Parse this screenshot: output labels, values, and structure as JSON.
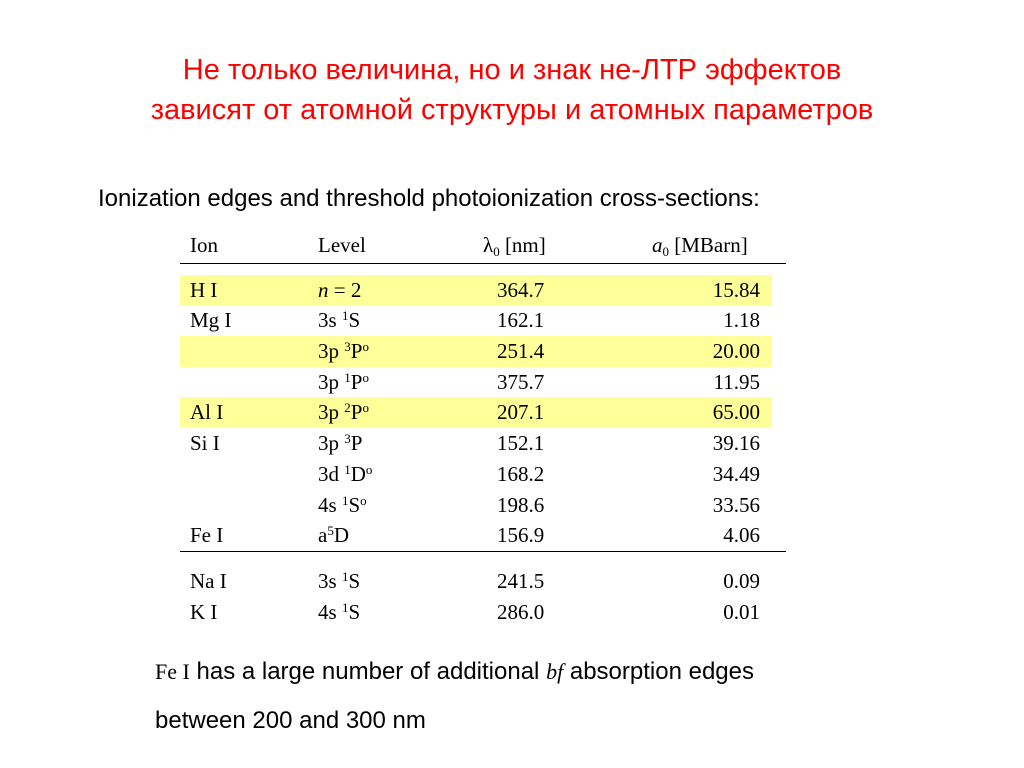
{
  "title": {
    "line1": "Не только величина, но и знак не-ЛТР эффектов",
    "line2": "зависят от атомной структуры и атомных параметров"
  },
  "subtitle": "Ionization edges and threshold photoionization cross-sections:",
  "table": {
    "headers": {
      "ion": "Ion",
      "level": "Level",
      "lambda_symbol": "λ",
      "lambda_sub": "0",
      "lambda_unit": " [nm]",
      "a_symbol": "a",
      "a_sub": "0",
      "a_unit": " [MBarn]"
    },
    "rows": [
      {
        "ion": "H I",
        "level_pre": "n",
        "level_main": " = 2",
        "level_sup": "",
        "level_post": "",
        "lambda": "364.7",
        "a0": "15.84"
      },
      {
        "ion": "Mg I",
        "level_pre": "",
        "level_main": "3s ",
        "level_sup": "1",
        "level_post": "S",
        "level_sup2": "",
        "lambda": "162.1",
        "a0": "1.18"
      },
      {
        "ion": "",
        "level_pre": "",
        "level_main": "3p ",
        "level_sup": "3",
        "level_post": "P",
        "level_sup2": "o",
        "lambda": "251.4",
        "a0": "20.00"
      },
      {
        "ion": "",
        "level_pre": "",
        "level_main": "3p ",
        "level_sup": "1",
        "level_post": "P",
        "level_sup2": "o",
        "lambda": "375.7",
        "a0": "11.95"
      },
      {
        "ion": "Al I",
        "level_pre": "",
        "level_main": "3p ",
        "level_sup": "2",
        "level_post": "P",
        "level_sup2": "o",
        "lambda": "207.1",
        "a0": "65.00"
      },
      {
        "ion": "Si I",
        "level_pre": "",
        "level_main": "3p ",
        "level_sup": "3",
        "level_post": "P",
        "level_sup2": "",
        "lambda": "152.1",
        "a0": "39.16"
      },
      {
        "ion": "",
        "level_pre": "",
        "level_main": "3d ",
        "level_sup": "1",
        "level_post": "D",
        "level_sup2": "o",
        "lambda": "168.2",
        "a0": "34.49"
      },
      {
        "ion": "",
        "level_pre": "",
        "level_main": "4s ",
        "level_sup": "1",
        "level_post": "S",
        "level_sup2": "o",
        "lambda": "198.6",
        "a0": "33.56"
      },
      {
        "ion": "Fe I",
        "level_pre": "",
        "level_main": "a",
        "level_sup": "5",
        "level_post": "D",
        "level_sup2": "",
        "lambda": "156.9",
        "a0": "4.06"
      },
      {
        "ion": "Na I",
        "level_pre": "",
        "level_main": "3s ",
        "level_sup": "1",
        "level_post": "S",
        "level_sup2": "",
        "lambda": "241.5",
        "a0": "0.09"
      },
      {
        "ion": "K I",
        "level_pre": "",
        "level_main": "4s ",
        "level_sup": "1",
        "level_post": "S",
        "level_sup2": "",
        "lambda": "286.0",
        "a0": "0.01"
      }
    ],
    "highlight_color": "#ffff99"
  },
  "note": {
    "fe": "Fe I",
    "text1": " has a large number of additional ",
    "bf": "bf",
    "text2": " absorption edges",
    "line2": "between 200 and 300 nm"
  },
  "colors": {
    "title": "#ff0000",
    "text": "#000000"
  }
}
